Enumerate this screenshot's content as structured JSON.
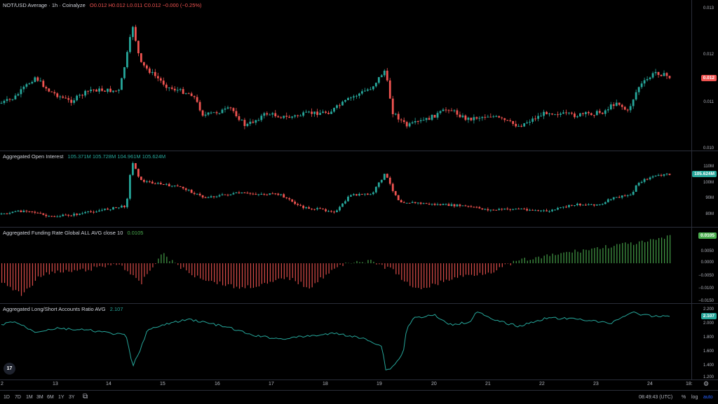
{
  "panes": {
    "price": {
      "symbol": "NOT/USD Average · 1h · Coinalyze",
      "o": "O0.012",
      "h": "H0.012",
      "l": "L0.011",
      "c": "C0.012",
      "chg": "−0.000 (−0.25%)",
      "ticks": [
        "0.013",
        "0.012",
        "0.011",
        "0.010"
      ],
      "last": "0.012"
    },
    "oi": {
      "title": "Aggregated Open Interest",
      "v1": "105.371M",
      "v2": "105.728M",
      "v3": "104.961M",
      "v4": "105.624M",
      "ticks": [
        "110M",
        "100M",
        "90M",
        "80M"
      ],
      "last": "105.624M"
    },
    "funding": {
      "title": "Aggregated Funding Rate Global ALL AVG close 10",
      "value": "0.0105",
      "ticks": [
        "0.0050",
        "0.0000",
        "−0.0050",
        "−0.0100",
        "−0.0150"
      ],
      "last": "0.0105"
    },
    "ls": {
      "title": "Aggregated Long/Short Accounts Ratio AVG",
      "value": "2.107",
      "ticks": [
        "2.200",
        "2.000",
        "1.800",
        "1.600",
        "1.400",
        "1.200"
      ],
      "last": "2.107"
    }
  },
  "xaxis": [
    "2",
    "13",
    "14",
    "15",
    "16",
    "17",
    "18",
    "19",
    "20",
    "21",
    "22",
    "23",
    "24",
    "18:"
  ],
  "bottombar": {
    "ranges": [
      "1D",
      "7D",
      "1M",
      "3M",
      "6M",
      "1Y",
      "3Y"
    ],
    "time": "08:49:43 (UTC)",
    "pct": "%",
    "log": "log",
    "auto": "auto"
  },
  "logo": "17",
  "colors": {
    "up": "#26a69a",
    "down": "#ef5350",
    "green": "#4caf50",
    "bg": "#000000"
  }
}
